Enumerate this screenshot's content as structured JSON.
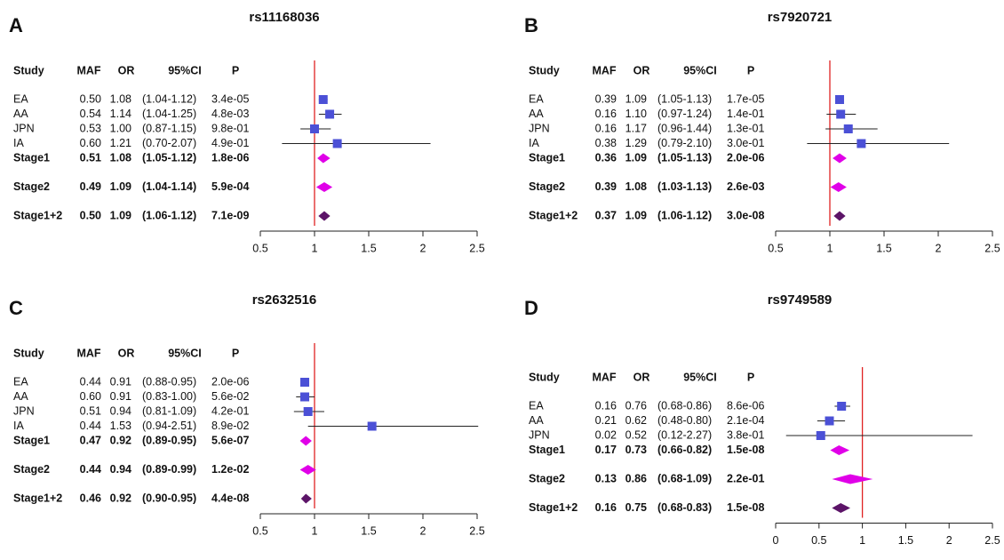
{
  "chart_data": [
    {
      "type": "forest",
      "label": "A",
      "title": "rs11168036",
      "columns": [
        "Study",
        "MAF",
        "OR",
        "95%CI",
        "P"
      ],
      "categories": [
        "EA",
        "AA",
        "JPN",
        "IA",
        "Stage1",
        "Stage2",
        "Stage1+2"
      ],
      "maf": [
        "0.50",
        "0.54",
        "0.53",
        "0.60",
        "0.51",
        "0.49",
        "0.50"
      ],
      "values": [
        1.08,
        1.14,
        1.0,
        1.21,
        1.08,
        1.09,
        1.09
      ],
      "value_labels": [
        "1.08",
        "1.14",
        "1.00",
        "1.21",
        "1.08",
        "1.09",
        "1.09"
      ],
      "ci_low": [
        1.04,
        1.04,
        0.87,
        0.7,
        1.05,
        1.04,
        1.06
      ],
      "ci_high": [
        1.12,
        1.25,
        1.15,
        2.07,
        1.12,
        1.14,
        1.12
      ],
      "ci_labels": [
        "(1.04-1.12)",
        "(1.04-1.25)",
        "(0.87-1.15)",
        "(0.70-2.07)",
        "(1.05-1.12)",
        "(1.04-1.14)",
        "(1.06-1.12)"
      ],
      "p": [
        "3.4e-05",
        "4.8e-03",
        "9.8e-01",
        "4.9e-01",
        "1.8e-06",
        "5.9e-04",
        "7.1e-09"
      ],
      "markers": [
        "square",
        "square",
        "square",
        "square",
        "diamond",
        "diamond",
        "diamond"
      ],
      "colors": [
        "#4b50d6",
        "#4b50d6",
        "#4b50d6",
        "#4b50d6",
        "#e000e8",
        "#e000e8",
        "#5c1468"
      ],
      "xlim": [
        0.5,
        2.5
      ],
      "xticks": [
        0.5,
        1,
        1.5,
        2,
        2.5
      ],
      "reference": 1,
      "reference_color": "#e02222"
    },
    {
      "type": "forest",
      "label": "B",
      "title": "rs7920721",
      "columns": [
        "Study",
        "MAF",
        "OR",
        "95%CI",
        "P"
      ],
      "categories": [
        "EA",
        "AA",
        "JPN",
        "IA",
        "Stage1",
        "Stage2",
        "Stage1+2"
      ],
      "maf": [
        "0.39",
        "0.16",
        "0.16",
        "0.38",
        "0.36",
        "0.39",
        "0.37"
      ],
      "values": [
        1.09,
        1.1,
        1.17,
        1.29,
        1.09,
        1.08,
        1.09
      ],
      "value_labels": [
        "1.09",
        "1.10",
        "1.17",
        "1.29",
        "1.09",
        "1.08",
        "1.09"
      ],
      "ci_low": [
        1.05,
        0.97,
        0.96,
        0.79,
        1.05,
        1.03,
        1.06
      ],
      "ci_high": [
        1.13,
        1.24,
        1.44,
        2.1,
        1.13,
        1.13,
        1.12
      ],
      "ci_labels": [
        "(1.05-1.13)",
        "(0.97-1.24)",
        "(0.96-1.44)",
        "(0.79-2.10)",
        "(1.05-1.13)",
        "(1.03-1.13)",
        "(1.06-1.12)"
      ],
      "p": [
        "1.7e-05",
        "1.4e-01",
        "1.3e-01",
        "3.0e-01",
        "2.0e-06",
        "2.6e-03",
        "3.0e-08"
      ],
      "markers": [
        "square",
        "square",
        "square",
        "square",
        "diamond",
        "diamond",
        "diamond"
      ],
      "colors": [
        "#4b50d6",
        "#4b50d6",
        "#4b50d6",
        "#4b50d6",
        "#e000e8",
        "#e000e8",
        "#5c1468"
      ],
      "xlim": [
        0.5,
        2.5
      ],
      "xticks": [
        0.5,
        1,
        1.5,
        2,
        2.5
      ],
      "reference": 1,
      "reference_color": "#e02222"
    },
    {
      "type": "forest",
      "label": "C",
      "title": "rs2632516",
      "columns": [
        "Study",
        "MAF",
        "OR",
        "95%CI",
        "P"
      ],
      "categories": [
        "EA",
        "AA",
        "JPN",
        "IA",
        "Stage1",
        "Stage2",
        "Stage1+2"
      ],
      "maf": [
        "0.44",
        "0.60",
        "0.51",
        "0.44",
        "0.47",
        "0.44",
        "0.46"
      ],
      "values": [
        0.91,
        0.91,
        0.94,
        1.53,
        0.92,
        0.94,
        0.92
      ],
      "value_labels": [
        "0.91",
        "0.91",
        "0.94",
        "1.53",
        "0.92",
        "0.94",
        "0.92"
      ],
      "ci_low": [
        0.88,
        0.83,
        0.81,
        0.94,
        0.89,
        0.89,
        0.9
      ],
      "ci_high": [
        0.95,
        1.0,
        1.09,
        2.51,
        0.95,
        0.99,
        0.95
      ],
      "ci_labels": [
        "(0.88-0.95)",
        "(0.83-1.00)",
        "(0.81-1.09)",
        "(0.94-2.51)",
        "(0.89-0.95)",
        "(0.89-0.99)",
        "(0.90-0.95)"
      ],
      "p": [
        "2.0e-06",
        "5.6e-02",
        "4.2e-01",
        "8.9e-02",
        "5.6e-07",
        "1.2e-02",
        "4.4e-08"
      ],
      "markers": [
        "square",
        "square",
        "square",
        "square",
        "diamond",
        "diamond",
        "diamond"
      ],
      "colors": [
        "#4b50d6",
        "#4b50d6",
        "#4b50d6",
        "#4b50d6",
        "#e000e8",
        "#e000e8",
        "#5c1468"
      ],
      "xlim": [
        0.5,
        2.5
      ],
      "xticks": [
        0.5,
        1,
        1.5,
        2,
        2.5
      ],
      "reference": 1,
      "reference_color": "#e02222"
    },
    {
      "type": "forest",
      "label": "D",
      "title": "rs9749589",
      "columns": [
        "Study",
        "MAF",
        "OR",
        "95%CI",
        "P"
      ],
      "categories": [
        "EA",
        "AA",
        "JPN",
        "Stage1",
        "Stage2",
        "Stage1+2"
      ],
      "maf": [
        "0.16",
        "0.21",
        "0.02",
        "0.17",
        "0.13",
        "0.16"
      ],
      "values": [
        0.76,
        0.62,
        0.52,
        0.73,
        0.86,
        0.75
      ],
      "value_labels": [
        "0.76",
        "0.62",
        "0.52",
        "0.73",
        "0.86",
        "0.75"
      ],
      "ci_low": [
        0.68,
        0.48,
        0.12,
        0.66,
        0.68,
        0.68
      ],
      "ci_high": [
        0.86,
        0.8,
        2.27,
        0.82,
        1.09,
        0.83
      ],
      "ci_labels": [
        "(0.68-0.86)",
        "(0.48-0.80)",
        "(0.12-2.27)",
        "(0.66-0.82)",
        "(0.68-1.09)",
        "(0.68-0.83)"
      ],
      "p": [
        "8.6e-06",
        "2.1e-04",
        "3.8e-01",
        "1.5e-08",
        "2.2e-01",
        "1.5e-08"
      ],
      "markers": [
        "square",
        "square",
        "square",
        "diamond",
        "diamond",
        "diamond"
      ],
      "colors": [
        "#4b50d6",
        "#4b50d6",
        "#4b50d6",
        "#e000e8",
        "#e000e8",
        "#5c1468"
      ],
      "xlim": [
        0,
        2.5
      ],
      "xticks": [
        0,
        0.5,
        1,
        1.5,
        2,
        2.5
      ],
      "reference": 1,
      "reference_color": "#e02222"
    }
  ]
}
